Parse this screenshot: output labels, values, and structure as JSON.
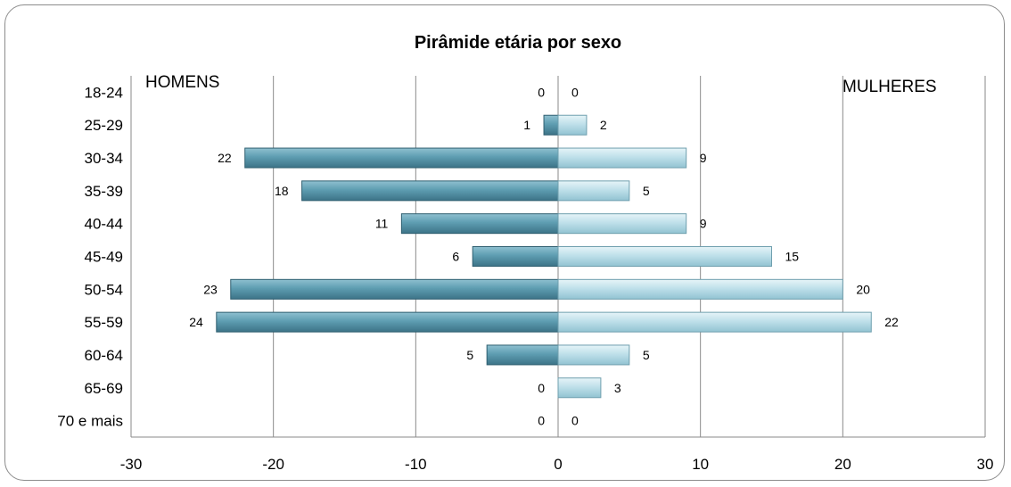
{
  "chart_data": {
    "type": "bar",
    "orientation": "horizontal",
    "title": "Pirâmide  etária por sexo",
    "categories": [
      "18-24",
      "25-29",
      "30-34",
      "35-39",
      "40-44",
      "45-49",
      "50-54",
      "55-59",
      "60-64",
      "65-69",
      "70 e mais"
    ],
    "series": [
      {
        "name": "HOMENS",
        "values": [
          0,
          1,
          22,
          18,
          11,
          6,
          23,
          24,
          5,
          0,
          0
        ],
        "color": "#4f8ea3"
      },
      {
        "name": "MULHERES",
        "values": [
          0,
          2,
          9,
          5,
          9,
          15,
          20,
          22,
          5,
          3,
          0
        ],
        "color": "#b4dbe6"
      }
    ],
    "xlim": [
      -30,
      30
    ],
    "xticks": [
      "-30",
      "-20",
      "-10",
      "0",
      "10",
      "20",
      "30"
    ],
    "grid": true,
    "legend": "none"
  }
}
